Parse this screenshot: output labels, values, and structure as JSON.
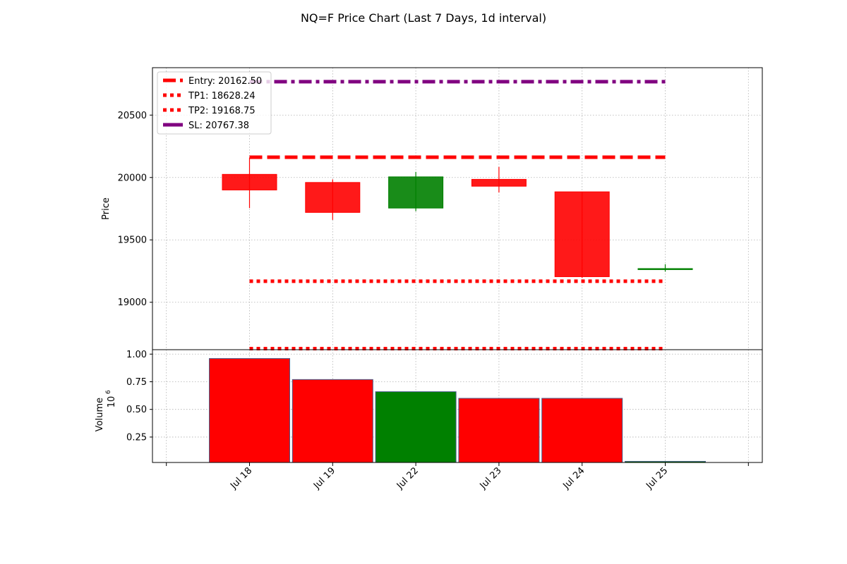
{
  "chart_data": [
    {
      "type": "candlestick",
      "title": "NQ=F Price Chart (Last 7 Days, 1d interval)",
      "xlabel": "",
      "ylabel": "Price",
      "categories": [
        "Jul 18",
        "Jul 19",
        "Jul 22",
        "Jul 23",
        "Jul 24",
        "Jul 25"
      ],
      "ylim": [
        18620,
        20880
      ],
      "yticks": [
        19000,
        19500,
        20000,
        20500
      ],
      "grid": true,
      "legend_position": "top-left",
      "candles": [
        {
          "date": "Jul 18",
          "open": 20025,
          "high": 20160,
          "low": 19755,
          "close": 19900,
          "color": "#ff0000"
        },
        {
          "date": "Jul 19",
          "open": 19960,
          "high": 19985,
          "low": 19660,
          "close": 19720,
          "color": "#ff0000"
        },
        {
          "date": "Jul 22",
          "open": 19755,
          "high": 20045,
          "low": 19730,
          "close": 20005,
          "color": "#008000"
        },
        {
          "date": "Jul 23",
          "open": 19985,
          "high": 20085,
          "low": 19880,
          "close": 19930,
          "color": "#ff0000"
        },
        {
          "date": "Jul 24",
          "open": 19885,
          "high": 19885,
          "low": 19195,
          "close": 19205,
          "color": "#ff0000"
        },
        {
          "date": "Jul 25",
          "open": 19265,
          "high": 19305,
          "low": 19245,
          "close": 19270,
          "color": "#008000"
        }
      ],
      "levels": [
        {
          "label": "Entry: 20162.50",
          "value": 20162.5,
          "color": "#ff0000",
          "style": "dashed"
        },
        {
          "label": "TP1: 18628.24",
          "value": 18628.24,
          "color": "#ff0000",
          "style": "dotted"
        },
        {
          "label": "TP2: 19168.75",
          "value": 19168.75,
          "color": "#ff0000",
          "style": "dotted"
        },
        {
          "label": "SL: 20767.38",
          "value": 20767.38,
          "color": "#800080",
          "style": "dashdot"
        }
      ]
    },
    {
      "type": "bar",
      "ylabel": "Volume",
      "scale_label": "10",
      "scale_exp": "6",
      "categories": [
        "Jul 18",
        "Jul 19",
        "Jul 22",
        "Jul 23",
        "Jul 24",
        "Jul 25"
      ],
      "values": [
        0.96,
        0.77,
        0.66,
        0.6,
        0.6,
        0.03
      ],
      "colors": [
        "#ff0000",
        "#ff0000",
        "#008000",
        "#ff0000",
        "#ff0000",
        "#008000"
      ],
      "ylim": [
        0.02,
        1.04
      ],
      "yticks": [
        0.25,
        0.5,
        0.75,
        1.0
      ],
      "ytick_labels": [
        "0.25",
        "0.50",
        "0.75",
        "1.00"
      ],
      "grid": true
    }
  ]
}
